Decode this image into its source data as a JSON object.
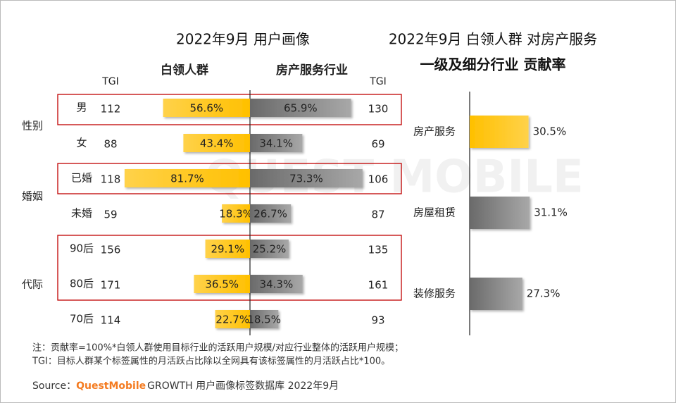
{
  "chart_data": [
    {
      "type": "butterfly",
      "title": "2022年9月 用户画像",
      "tgi_label": "TGI",
      "categories": [
        "男",
        "女",
        "已婚",
        "未婚",
        "90后",
        "80后",
        "70后"
      ],
      "category_groups": [
        "性别",
        "性别",
        "婚姻",
        "婚姻",
        "代际",
        "代际",
        "代际"
      ],
      "series": [
        {
          "name": "白领人群",
          "color": "#ffc000",
          "side": "left",
          "values": [
            56.6,
            43.4,
            81.7,
            18.3,
            29.1,
            36.5,
            22.7
          ],
          "value_labels": [
            "56.6%",
            "43.4%",
            "81.7%",
            "18.3%",
            "29.1%",
            "36.5%",
            "22.7%"
          ],
          "tgi": [
            112,
            88,
            118,
            59,
            156,
            171,
            114
          ]
        },
        {
          "name": "房产服务行业",
          "color": "#808080",
          "side": "right",
          "values": [
            65.9,
            34.1,
            73.3,
            26.7,
            25.2,
            34.3,
            18.5
          ],
          "value_labels": [
            "65.9%",
            "34.1%",
            "73.3%",
            "26.7%",
            "25.2%",
            "34.3%",
            "18.5%"
          ],
          "tgi": [
            130,
            69,
            106,
            87,
            135,
            161,
            93
          ]
        }
      ]
    },
    {
      "type": "hbar",
      "title_lines": [
        "2022年9月 白领人群 对房产服务",
        "一级及细分行业 贡献率"
      ],
      "categories": [
        "房产服务",
        "房屋租赁",
        "装修服务"
      ],
      "values": [
        30.5,
        31.1,
        27.3
      ],
      "value_labels": [
        "30.5%",
        "31.1%",
        "27.3%"
      ],
      "colors": [
        "#ffc000",
        "#808080",
        "#808080"
      ]
    }
  ],
  "watermark": "QUEST MOBILE",
  "notes": [
    "注：贡献率=100%*白领人群使用目标行业的活跃用户规模/对应行业整体的活跃用户规模；",
    "TGI：目标人群某个标签属性的月活跃占比除以全网具有该标签属性的月活跃占比*100。"
  ],
  "source": {
    "label": "Source：",
    "brand": "QuestMobile",
    "text": "GROWTH 用户画像标签数据库 2022年9月"
  }
}
